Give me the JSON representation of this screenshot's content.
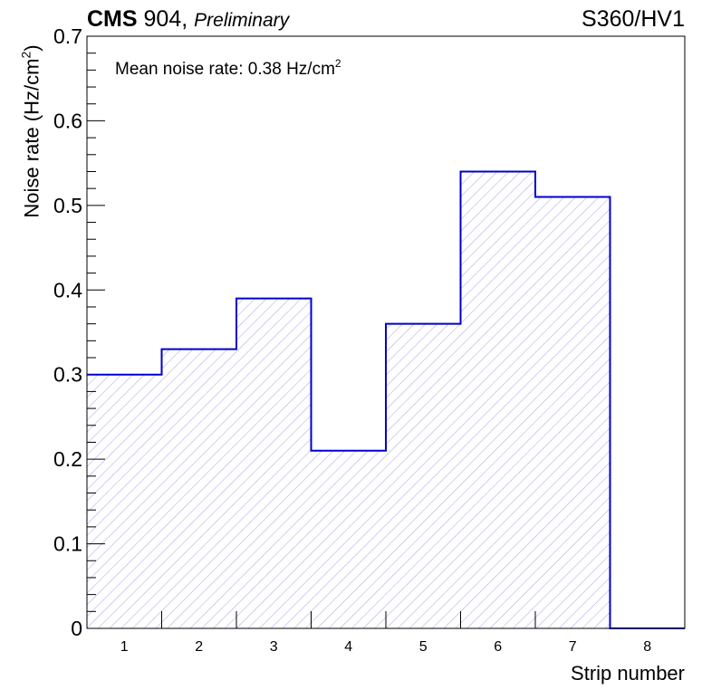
{
  "header": {
    "experiment": "CMS",
    "site": "904,",
    "tag": "Preliminary",
    "label": "S360/HV1"
  },
  "annotation": {
    "text": "Mean noise rate: 0.38 Hz/cm",
    "sup": "2"
  },
  "chart_data": {
    "type": "bar",
    "title": "",
    "xlabel": "Strip number",
    "ylabel": "Noise rate (Hz/cm",
    "ylabel_sup": "2",
    "ylabel_close": ")",
    "categories": [
      "1",
      "2",
      "3",
      "4",
      "5",
      "6",
      "7",
      "8"
    ],
    "values": [
      0.3,
      0.33,
      0.39,
      0.21,
      0.36,
      0.54,
      0.51,
      0.0
    ],
    "xlim": [
      0.5,
      8.5
    ],
    "ylim": [
      0,
      0.7
    ],
    "yticks": [
      0,
      0.1,
      0.2,
      0.3,
      0.4,
      0.5,
      0.6,
      0.7
    ],
    "ytick_labels": [
      "0",
      "0.1",
      "0.2",
      "0.3",
      "0.4",
      "0.5",
      "0.6",
      "0.7"
    ],
    "grid": false,
    "style": "step histogram with diagonal hatch fill",
    "line_color": "#0000cc",
    "hatch_color": "#9a9ae0"
  }
}
